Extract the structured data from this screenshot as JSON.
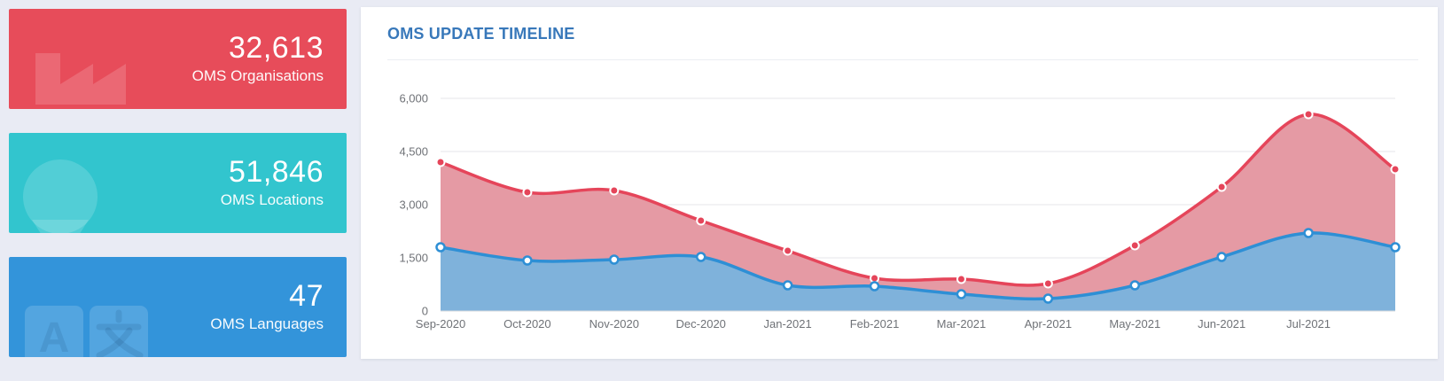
{
  "cards": [
    {
      "value": "32,613",
      "label": "OMS Organisations",
      "color": "#e74c5a",
      "icon": "factory-icon"
    },
    {
      "value": "51,846",
      "label": "OMS Locations",
      "color": "#32c5ce",
      "icon": "map-marker-icon"
    },
    {
      "value": "47",
      "label": "OMS Languages",
      "color": "#3394da",
      "icon": "language-icon"
    }
  ],
  "panel": {
    "title": "OMS UPDATE TIMELINE"
  },
  "chart_data": {
    "type": "area",
    "title": "OMS UPDATE TIMELINE",
    "x_tick_labels": [
      "Sep-2020",
      "Oct-2020",
      "Nov-2020",
      "Dec-2020",
      "Jan-2021",
      "Feb-2021",
      "Mar-2021",
      "Apr-2021",
      "May-2021",
      "Jun-2021",
      "Jul-2021"
    ],
    "series": [
      {
        "name": "red-series",
        "line_color": "#e5455a",
        "fill_color": "#e59aa4",
        "marker": "red-fill-white-ring",
        "values": [
          4200,
          3350,
          3400,
          2550,
          1700,
          925,
          900,
          775,
          1850,
          3500,
          5550,
          4000
        ]
      },
      {
        "name": "blue-series",
        "line_color": "#2e8fd5",
        "fill_color": "#7fb2db",
        "marker": "white-fill-blue-ring",
        "values": [
          1800,
          1425,
          1450,
          1525,
          725,
          700,
          475,
          350,
          725,
          1525,
          2200,
          1800
        ]
      }
    ],
    "y_ticks": [
      0,
      1500,
      3000,
      4500,
      6000
    ],
    "y_tick_labels": [
      "0",
      "1,500",
      "3,000",
      "4,500",
      "6,000"
    ],
    "ylim": [
      0,
      6000
    ],
    "grid": "horizontal-only",
    "legend": "none",
    "note": "12 data points; final right-edge point has no x-axis label"
  },
  "colors": {
    "page_bg": "#e9ebf4",
    "panel_bg": "#ffffff",
    "panel_title": "#3878ba",
    "axis_text": "#6f7277",
    "grid_line": "#e4e5e9",
    "zero_line": "#d6d8dd"
  }
}
